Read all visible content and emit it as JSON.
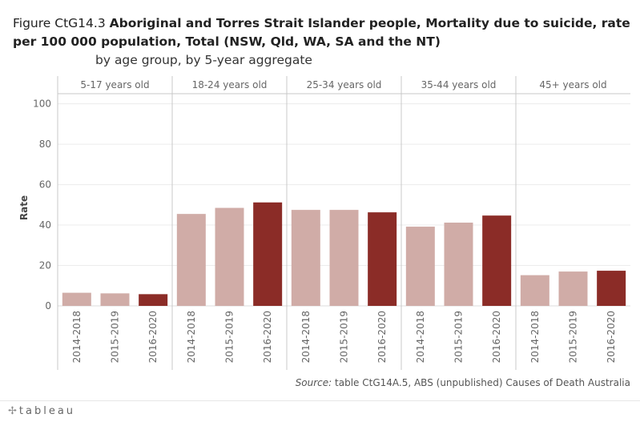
{
  "title": {
    "prefix": "Figure CtG14.3 ",
    "main": "Aboriginal and Torres Strait Islander people, Mortality due to suicide, rate per 100 000 population, Total (NSW, Qld, WA, SA and the NT)",
    "subtitle": "by age group, by 5-year aggregate"
  },
  "source": {
    "label": "Source:",
    "text": " table CtG14A.5, ABS (unpublished) Causes of Death Australia"
  },
  "footer": {
    "logo_text": "tableau"
  },
  "colors": {
    "light_bar": "#d0aca7",
    "dark_bar": "#8b2c27",
    "grid": "#ececec",
    "divider": "#c8c8c8"
  },
  "chart_data": {
    "type": "bar",
    "title": "Aboriginal and Torres Strait Islander people, Mortality due to suicide, rate per 100 000 population, Total (NSW, Qld, WA, SA and the NT)",
    "ylabel": "Rate",
    "xlabel": "",
    "ylim": [
      0,
      105
    ],
    "yticks": [
      0,
      20,
      40,
      60,
      80,
      100
    ],
    "categories": [
      "2014-2018",
      "2015-2019",
      "2016-2020"
    ],
    "highlight_category": "2016-2020",
    "panels": [
      {
        "name": "5-17 years old",
        "values": [
          6.5,
          6.2,
          5.8
        ]
      },
      {
        "name": "18-24 years old",
        "values": [
          45.5,
          48.5,
          51.2
        ]
      },
      {
        "name": "25-34 years old",
        "values": [
          47.5,
          47.5,
          46.3
        ]
      },
      {
        "name": "35-44 years old",
        "values": [
          39.2,
          41.2,
          44.7
        ]
      },
      {
        "name": "45+ years old",
        "values": [
          15.2,
          17.0,
          17.4
        ]
      }
    ],
    "grid": true
  }
}
